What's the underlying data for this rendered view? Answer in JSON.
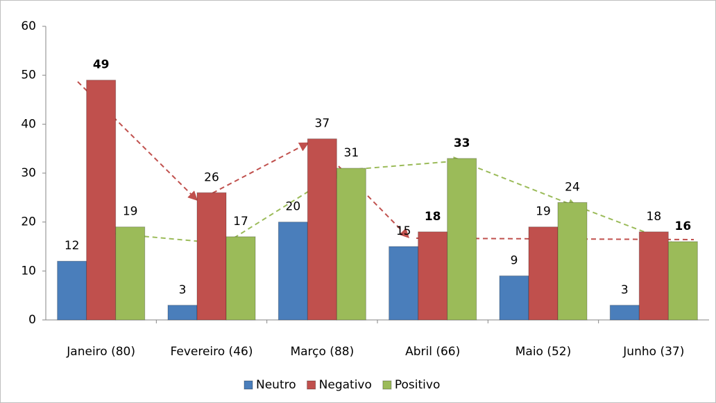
{
  "chart_data": {
    "type": "bar",
    "categories": [
      "Janeiro (80)",
      "Fevereiro (46)",
      "Março (88)",
      "Abril (66)",
      "Maio (52)",
      "Junho (37)"
    ],
    "series": [
      {
        "name": "Neutro",
        "color": "#4a7ebb",
        "values": [
          12,
          3,
          20,
          15,
          9,
          3
        ],
        "bold": [
          false,
          false,
          false,
          false,
          false,
          false
        ]
      },
      {
        "name": "Negativo",
        "color": "#c0504d",
        "values": [
          49,
          26,
          37,
          18,
          19,
          18
        ],
        "bold": [
          true,
          false,
          false,
          true,
          false,
          false
        ]
      },
      {
        "name": "Positivo",
        "color": "#9bbb59",
        "values": [
          19,
          17,
          31,
          33,
          24,
          16
        ],
        "bold": [
          false,
          false,
          false,
          true,
          false,
          true
        ]
      }
    ],
    "ylim": [
      0,
      60
    ],
    "yticks": [
      0,
      10,
      20,
      30,
      40,
      50,
      60
    ],
    "grid": false,
    "legend": "bottom"
  }
}
